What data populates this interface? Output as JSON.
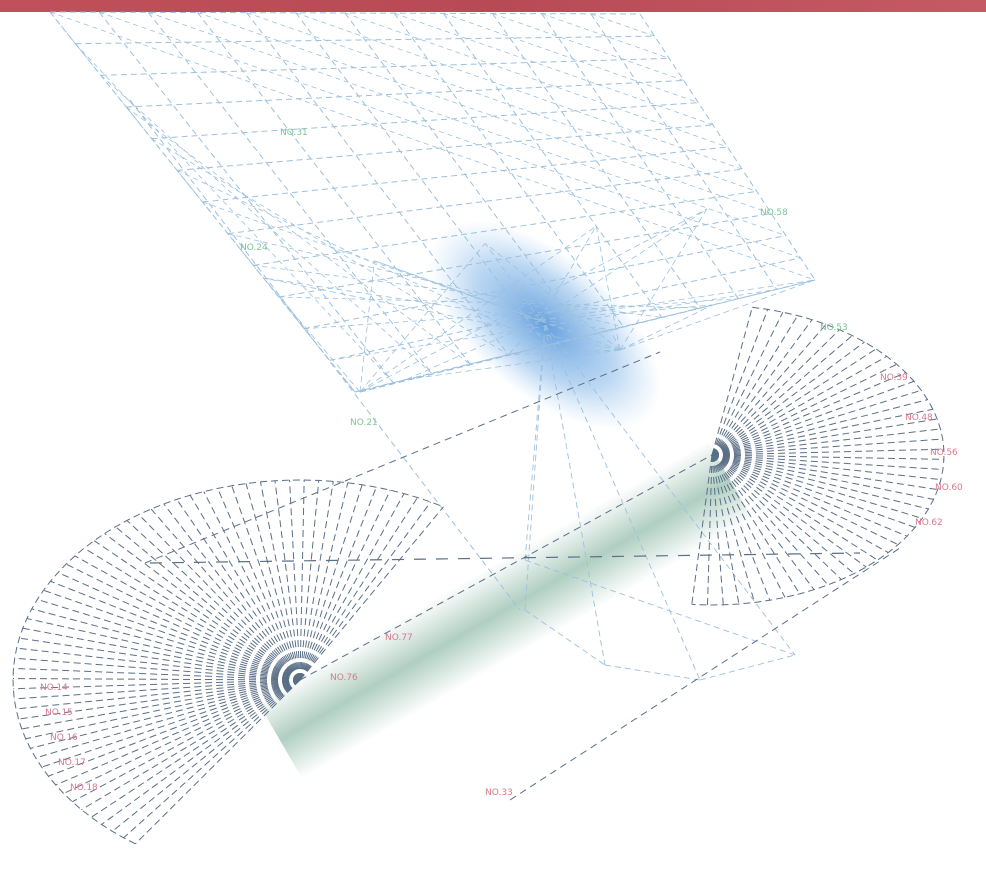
{
  "diagram": {
    "lower_fan_labels": [
      "NO.14",
      "NO.15",
      "NO.16",
      "NO.17",
      "NO.18",
      "NO.76",
      "NO.77",
      "NO.33"
    ],
    "right_fan_labels": [
      "NO.39",
      "NO.48",
      "NO.56",
      "NO.60",
      "NO.62"
    ],
    "mesh_labels": [
      "NO.21",
      "NO.24",
      "NO.31",
      "NO.53",
      "NO.58"
    ]
  }
}
